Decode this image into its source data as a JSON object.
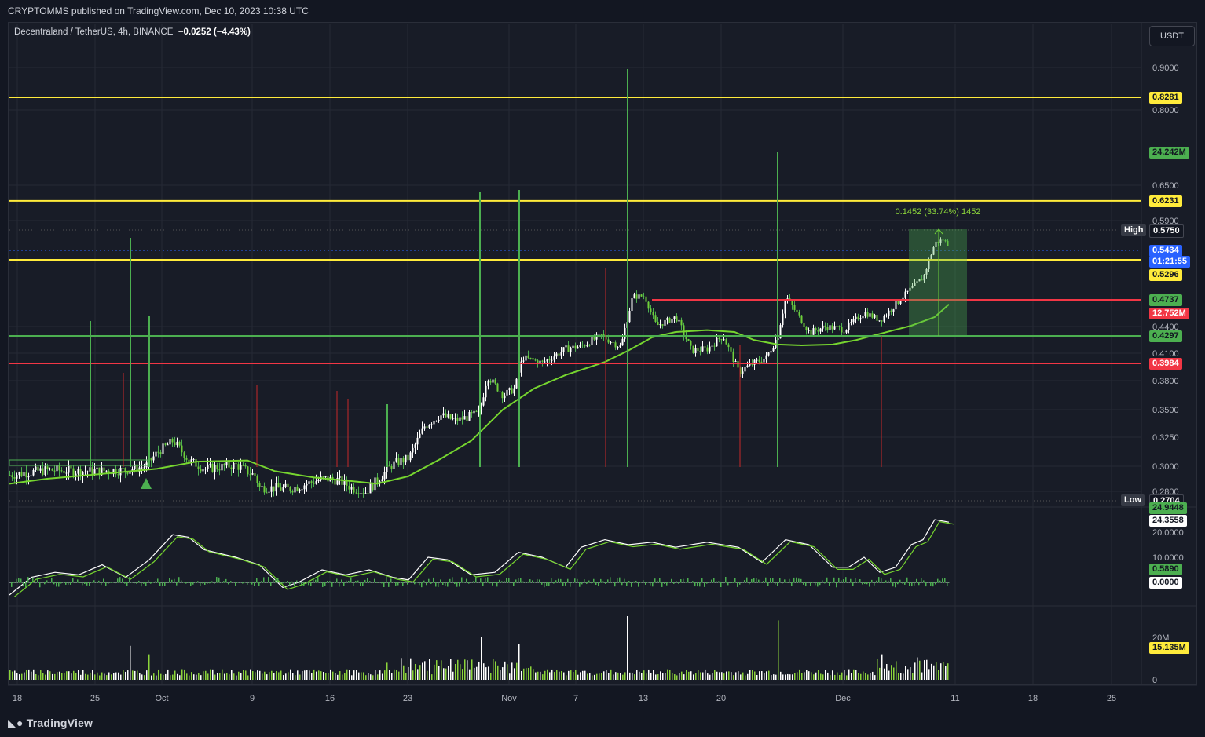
{
  "header": {
    "publisher": "CRYPTOMMS published on TradingView.com, Dec 10, 2023 10:38 UTC"
  },
  "legend": {
    "symbol": "Decentraland / TetherUS, 4h, BINANCE",
    "change": "−0.0252 (−4.43%)"
  },
  "currency_button": "USDT",
  "footer": {
    "logo_text": "TradingView"
  },
  "colors": {
    "background": "#131722",
    "yellow": "#ffeb3b",
    "green": "#4caf50",
    "bright_green": "#7ed321",
    "red": "#f23645",
    "blue": "#2962ff",
    "grid": "#262a35"
  },
  "chart_data": {
    "type": "candlestick",
    "symbol": "Decentraland / TetherUS",
    "interval": "4h",
    "exchange": "BINANCE",
    "x_ticks": [
      "18",
      "25",
      "Oct",
      "9",
      "16",
      "23",
      "Nov",
      "7",
      "13",
      "20",
      "Dec",
      "11",
      "18",
      "25"
    ],
    "price_ticks": [
      "0.9000",
      "0.8000",
      "0.6500",
      "0.5900",
      "0.4400",
      "0.4100",
      "0.3800",
      "0.3500",
      "0.3250",
      "0.3000",
      "0.2800"
    ],
    "price_axis_labels": [
      {
        "text": "0.8281",
        "style": "yellow"
      },
      {
        "text": "24.242M",
        "style": "green"
      },
      {
        "text": "0.6231",
        "style": "yellow"
      },
      {
        "text": "High",
        "style": "gray"
      },
      {
        "text": "0.5750",
        "style": "dark"
      },
      {
        "text": "0.5434",
        "style": "blue"
      },
      {
        "text": "01:21:55",
        "style": "blue"
      },
      {
        "text": "0.5296",
        "style": "yellow"
      },
      {
        "text": "0.4737",
        "style": "green"
      },
      {
        "text": "12.752M",
        "style": "red"
      },
      {
        "text": "0.4297",
        "style": "green"
      },
      {
        "text": "0.3984",
        "style": "red"
      },
      {
        "text": "Low",
        "style": "gray"
      },
      {
        "text": "0.2704",
        "style": "dark"
      }
    ],
    "horizontal_levels": [
      {
        "price": 0.8281,
        "color": "yellow"
      },
      {
        "price": 0.6231,
        "color": "yellow"
      },
      {
        "price": 0.5296,
        "color": "yellow"
      },
      {
        "price": 0.4737,
        "color": "red"
      },
      {
        "price": 0.4297,
        "color": "green"
      },
      {
        "price": 0.3984,
        "color": "red"
      }
    ],
    "measure_annotation": "0.1452 (33.74%) 1452",
    "high": 0.575,
    "low": 0.2704,
    "last_price": 0.5434,
    "countdown": "01:21:55",
    "oscillator": {
      "ticks": [
        "20.0000",
        "10.0000"
      ],
      "labels": [
        {
          "text": "24.9448",
          "style": "green"
        },
        {
          "text": "24.3558",
          "style": "white"
        },
        {
          "text": "0.5890",
          "style": "green"
        },
        {
          "text": "0.0000",
          "style": "white"
        }
      ]
    },
    "volume": {
      "ticks": [
        "20M",
        "0"
      ],
      "last": "15.135M"
    }
  }
}
